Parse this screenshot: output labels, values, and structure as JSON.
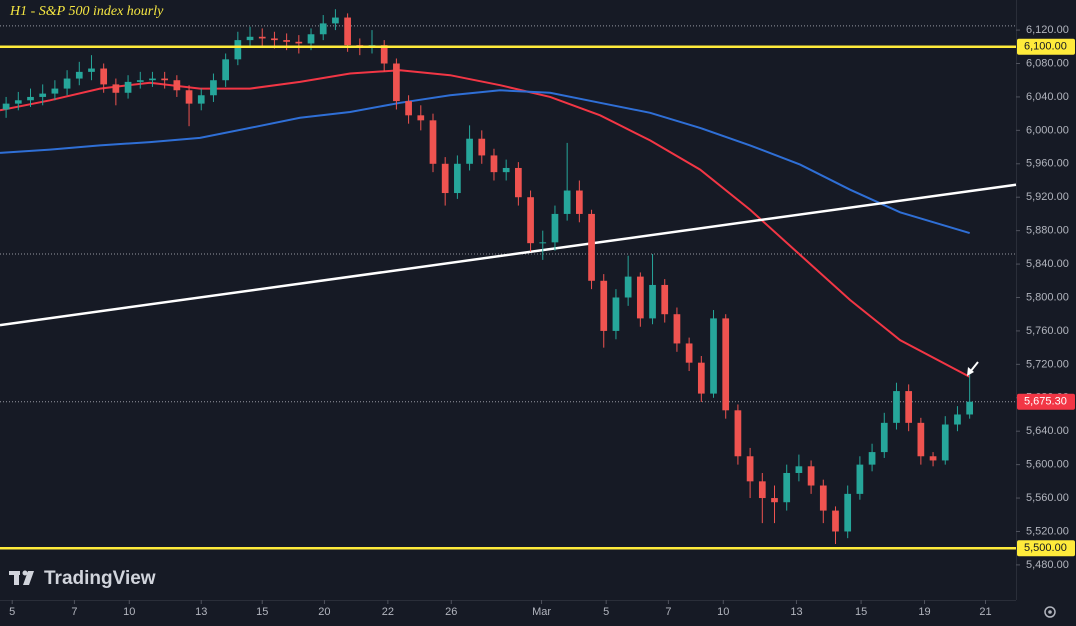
{
  "chart_data": {
    "type": "candlestick",
    "title": "H1 - S&P 500 index hourly",
    "watermark": "TradingView",
    "xlim": [
      -0.5,
      82.8
    ],
    "ylim": [
      5438,
      6156
    ],
    "open": [
      6025,
      6032,
      6036,
      6040,
      6044,
      6050,
      6062,
      6070,
      6074,
      6055,
      6045,
      6058,
      6060,
      6062,
      6060,
      6048,
      6032,
      6042,
      6060,
      6085,
      6108,
      6112,
      6110,
      6108,
      6106,
      6104,
      6115,
      6128,
      6135,
      6102,
      6100,
      6102,
      6080,
      6035,
      6018,
      6012,
      5960,
      5925,
      5960,
      5990,
      5970,
      5950,
      5955,
      5920,
      5865,
      5866,
      5900,
      5928,
      5900,
      5820,
      5760,
      5800,
      5825,
      5775,
      5815,
      5780,
      5745,
      5722,
      5685,
      5775,
      5665,
      5610,
      5580,
      5560,
      5555,
      5590,
      5598,
      5575,
      5545,
      5520,
      5565,
      5600,
      5615,
      5650,
      5688,
      5650,
      5610,
      5605,
      5648,
      5660
    ],
    "high": [
      6040,
      6046,
      6050,
      6055,
      6060,
      6072,
      6082,
      6090,
      6080,
      6062,
      6066,
      6070,
      6070,
      6070,
      6066,
      6054,
      6050,
      6068,
      6092,
      6118,
      6124,
      6122,
      6118,
      6116,
      6114,
      6122,
      6138,
      6145,
      6140,
      6110,
      6120,
      6108,
      6086,
      6042,
      6030,
      6020,
      5968,
      5970,
      6006,
      6000,
      5978,
      5965,
      5962,
      5928,
      5880,
      5910,
      5985,
      5940,
      5905,
      5828,
      5810,
      5850,
      5830,
      5852,
      5822,
      5788,
      5752,
      5730,
      5785,
      5780,
      5672,
      5620,
      5590,
      5575,
      5600,
      5612,
      5605,
      5582,
      5550,
      5575,
      5610,
      5625,
      5662,
      5698,
      5696,
      5656,
      5615,
      5658,
      5670,
      5708
    ],
    "low": [
      6015,
      6024,
      6028,
      6030,
      6036,
      6042,
      6054,
      6060,
      6045,
      6030,
      6038,
      6050,
      6052,
      6050,
      6040,
      6005,
      6024,
      6034,
      6052,
      6078,
      6100,
      6100,
      6098,
      6096,
      6092,
      6096,
      6108,
      6120,
      6094,
      6090,
      6092,
      6070,
      6025,
      6008,
      6000,
      5950,
      5910,
      5918,
      5952,
      5960,
      5940,
      5940,
      5910,
      5855,
      5845,
      5856,
      5892,
      5890,
      5810,
      5740,
      5750,
      5790,
      5765,
      5768,
      5770,
      5735,
      5712,
      5675,
      5680,
      5655,
      5600,
      5560,
      5530,
      5530,
      5545,
      5580,
      5565,
      5530,
      5505,
      5512,
      5558,
      5592,
      5608,
      5642,
      5640,
      5600,
      5598,
      5600,
      5640,
      5655
    ],
    "close": [
      6032,
      6036,
      6040,
      6044,
      6050,
      6062,
      6070,
      6074,
      6055,
      6045,
      6058,
      6060,
      6062,
      6060,
      6048,
      6032,
      6042,
      6060,
      6085,
      6108,
      6112,
      6110,
      6108,
      6106,
      6104,
      6115,
      6128,
      6135,
      6102,
      6100,
      6102,
      6080,
      6035,
      6018,
      6012,
      5960,
      5925,
      5960,
      5990,
      5970,
      5950,
      5955,
      5920,
      5865,
      5866,
      5900,
      5928,
      5900,
      5820,
      5760,
      5800,
      5825,
      5775,
      5815,
      5780,
      5745,
      5722,
      5685,
      5775,
      5665,
      5610,
      5580,
      5560,
      5555,
      5590,
      5598,
      5575,
      5545,
      5520,
      5565,
      5600,
      5615,
      5650,
      5688,
      5650,
      5610,
      5605,
      5648,
      5660,
      5675.3
    ],
    "up_color": "#26a69a",
    "down_color": "#ef5350",
    "series": [
      {
        "color": "#f23645",
        "x": [
          -0.5,
          3.6,
          7.7,
          11.8,
          15.9,
          20,
          24.1,
          28.2,
          32.3,
          36.4,
          40.5,
          44.6,
          48.7,
          52.8,
          56.9,
          61,
          65.1,
          69.2,
          73.3,
          79
        ],
        "values": [
          6024,
          6036,
          6050,
          6057,
          6050,
          6050,
          6058,
          6068,
          6072,
          6066,
          6054,
          6040,
          6018,
          5988,
          5953,
          5905,
          5851,
          5797,
          5749,
          5705
        ]
      },
      {
        "color": "#2f6fd6",
        "x": [
          -0.5,
          3.6,
          7.7,
          11.8,
          15.9,
          20,
          24.1,
          28.2,
          32.3,
          36.4,
          40.5,
          44.6,
          48.7,
          52.8,
          56.9,
          61,
          65.1,
          69.2,
          73.3,
          79
        ],
        "values": [
          5973,
          5977,
          5982,
          5986,
          5991,
          6003,
          6015,
          6022,
          6033,
          6042,
          6048,
          6045,
          6033,
          6021,
          6003,
          5982,
          5959,
          5929,
          5902,
          5877
        ]
      }
    ],
    "trend_line": {
      "x": [
        -0.5,
        82.8
      ],
      "values": [
        5767,
        5935
      ],
      "color": "#ffffff"
    },
    "levels": [
      {
        "value": 6100,
        "label": "6,100.00",
        "color": "#ffeb3b"
      },
      {
        "value": 5500,
        "label": "5,500.00",
        "color": "#ffeb3b"
      }
    ],
    "dotted_levels": [
      6125,
      5852
    ],
    "last_price": {
      "value": 5675.3,
      "label": "5,675.30",
      "color": "#f23645"
    },
    "yticks": [
      {
        "value": 6120,
        "label": "6,120.00"
      },
      {
        "value": 6080,
        "label": "6,080.00"
      },
      {
        "value": 6040,
        "label": "6,040.00"
      },
      {
        "value": 6000,
        "label": "6,000.00"
      },
      {
        "value": 5960,
        "label": "5,960.00"
      },
      {
        "value": 5920,
        "label": "5,920.00"
      },
      {
        "value": 5880,
        "label": "5,880.00"
      },
      {
        "value": 5840,
        "label": "5,840.00"
      },
      {
        "value": 5800,
        "label": "5,800.00"
      },
      {
        "value": 5760,
        "label": "5,760.00"
      },
      {
        "value": 5720,
        "label": "5,720.00"
      },
      {
        "value": 5680,
        "label": "5,680.00"
      },
      {
        "value": 5640,
        "label": "5,640.00"
      },
      {
        "value": 5600,
        "label": "5,600.00"
      },
      {
        "value": 5560,
        "label": "5,560.00"
      },
      {
        "value": 5520,
        "label": "5,520.00"
      },
      {
        "value": 5480,
        "label": "5,480.00"
      }
    ],
    "xticks": [
      {
        "value": 0.5,
        "label": "5"
      },
      {
        "value": 5.6,
        "label": "7"
      },
      {
        "value": 10.1,
        "label": "10"
      },
      {
        "value": 16,
        "label": "13"
      },
      {
        "value": 21,
        "label": "15"
      },
      {
        "value": 26.1,
        "label": "20"
      },
      {
        "value": 31.3,
        "label": "22"
      },
      {
        "value": 36.5,
        "label": "26"
      },
      {
        "value": 43.9,
        "label": "Mar"
      },
      {
        "value": 49.2,
        "label": "5"
      },
      {
        "value": 54.3,
        "label": "7"
      },
      {
        "value": 58.8,
        "label": "10"
      },
      {
        "value": 64.8,
        "label": "13"
      },
      {
        "value": 70.1,
        "label": "15"
      },
      {
        "value": 75.3,
        "label": "19"
      },
      {
        "value": 80.3,
        "label": "21"
      }
    ]
  }
}
